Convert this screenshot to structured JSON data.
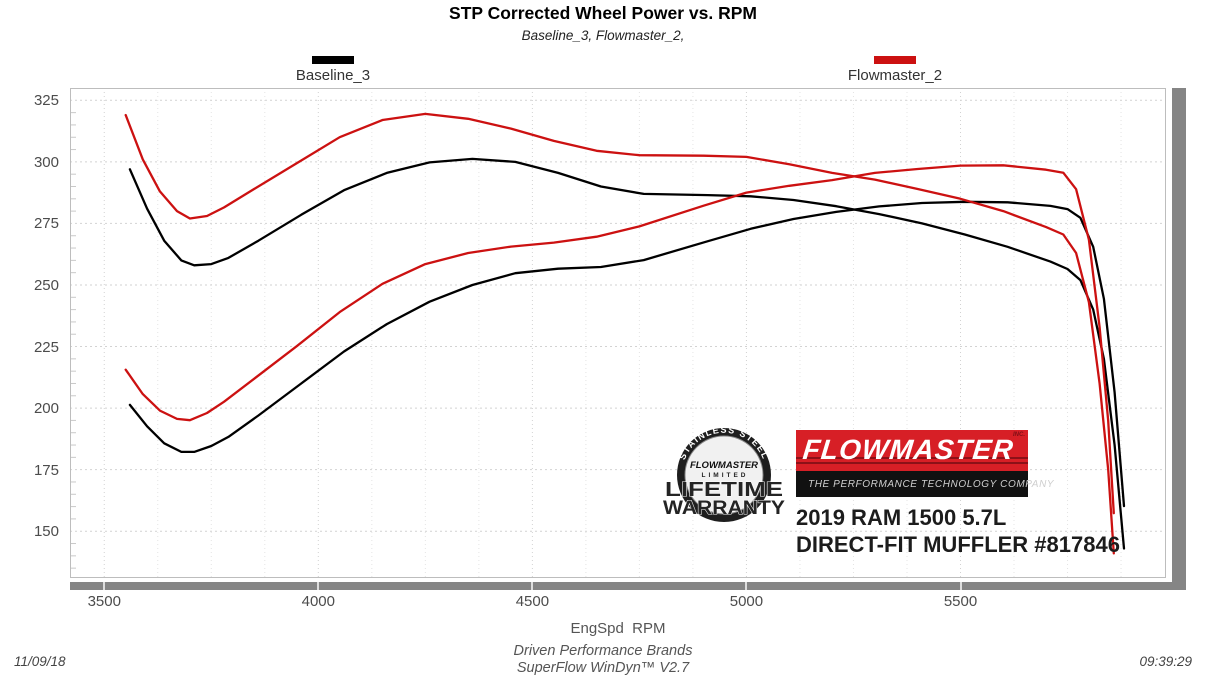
{
  "header": {
    "title": "STP Corrected Wheel Power vs. RPM",
    "subtitle": "Baseline_3, Flowmaster_2,"
  },
  "legend": [
    {
      "label": "Baseline_3",
      "color": "#000000"
    },
    {
      "label": "Flowmaster_2",
      "color": "#cc1111"
    }
  ],
  "footer": {
    "xlabel": "EngSpd  RPM",
    "brand": "Driven Performance Brands",
    "software": "SuperFlow WinDyn™ V2.7",
    "date": "11/09/18",
    "time": "09:39:29"
  },
  "overlay": {
    "badge": {
      "arc_text": "STAINLESS STEEL",
      "brand": "FLOWMASTER",
      "limited": "LIMITED",
      "line1": "LIFETIME",
      "line2": "WARRANTY"
    },
    "logo": {
      "name": "FLOWMASTER",
      "inc": "INC.",
      "tagline": "THE PERFORMANCE TECHNOLOGY COMPANY",
      "red": "#d71f26"
    },
    "vehicle_line1": "2019 RAM 1500 5.7L",
    "vehicle_line2": "DIRECT-FIT MUFFLER #817846"
  },
  "chart_data": {
    "type": "line",
    "title": "STP Corrected Wheel Power vs. RPM",
    "xlabel": "EngSpd RPM",
    "ylabel": "",
    "xlim": [
      3420,
      5980
    ],
    "ylim": [
      131,
      330
    ],
    "xticks": [
      3500,
      4000,
      4500,
      5000,
      5500
    ],
    "yticks": [
      150,
      175,
      200,
      225,
      250,
      275,
      300,
      325
    ],
    "grid": "dotted",
    "legend_position": "top",
    "series": [
      {
        "name": "Baseline_3_upper",
        "legend": "Baseline_3",
        "color": "#000000",
        "points": [
          [
            3560,
            297
          ],
          [
            3600,
            281
          ],
          [
            3640,
            268
          ],
          [
            3680,
            260
          ],
          [
            3710,
            258
          ],
          [
            3750,
            258.5
          ],
          [
            3790,
            261
          ],
          [
            3860,
            268
          ],
          [
            3960,
            278.5
          ],
          [
            4060,
            288.5
          ],
          [
            4160,
            295.5
          ],
          [
            4260,
            299.8
          ],
          [
            4360,
            301.2
          ],
          [
            4460,
            300
          ],
          [
            4560,
            295.5
          ],
          [
            4660,
            290
          ],
          [
            4760,
            287
          ],
          [
            4910,
            286.5
          ],
          [
            5010,
            286
          ],
          [
            5110,
            284.5
          ],
          [
            5210,
            282
          ],
          [
            5310,
            278.8
          ],
          [
            5410,
            275
          ],
          [
            5510,
            270.5
          ],
          [
            5610,
            265.5
          ],
          [
            5710,
            259.5
          ],
          [
            5750,
            256.5
          ],
          [
            5780,
            252
          ],
          [
            5810,
            240
          ],
          [
            5835,
            220
          ],
          [
            5860,
            185
          ],
          [
            5882,
            143
          ]
        ]
      },
      {
        "name": "Baseline_3_lower",
        "legend": "Baseline_3",
        "color": "#000000",
        "points": [
          [
            3560,
            201.3
          ],
          [
            3600,
            192.6
          ],
          [
            3640,
            185.7
          ],
          [
            3680,
            182.2
          ],
          [
            3710,
            182.2
          ],
          [
            3750,
            184.6
          ],
          [
            3790,
            188.3
          ],
          [
            3860,
            197.0
          ],
          [
            3960,
            210.0
          ],
          [
            4060,
            223.0
          ],
          [
            4160,
            234.1
          ],
          [
            4260,
            243.2
          ],
          [
            4360,
            250.0
          ],
          [
            4460,
            254.8
          ],
          [
            4560,
            256.6
          ],
          [
            4660,
            257.3
          ],
          [
            4760,
            260.1
          ],
          [
            4910,
            267.8
          ],
          [
            5010,
            272.8
          ],
          [
            5110,
            276.8
          ],
          [
            5210,
            279.7
          ],
          [
            5310,
            281.9
          ],
          [
            5410,
            283.3
          ],
          [
            5510,
            283.8
          ],
          [
            5610,
            283.6
          ],
          [
            5710,
            282.1
          ],
          [
            5750,
            280.8
          ],
          [
            5780,
            277.3
          ],
          [
            5810,
            265.5
          ],
          [
            5835,
            244.4
          ],
          [
            5860,
            206.4
          ],
          [
            5882,
            160.2
          ]
        ]
      },
      {
        "name": "Flowmaster_2_upper",
        "legend": "Flowmaster_2",
        "color": "#cc1111",
        "points": [
          [
            3550,
            319
          ],
          [
            3590,
            301
          ],
          [
            3630,
            288
          ],
          [
            3670,
            280
          ],
          [
            3700,
            277
          ],
          [
            3740,
            278
          ],
          [
            3780,
            281.5
          ],
          [
            3850,
            289
          ],
          [
            3950,
            299.5
          ],
          [
            4050,
            310
          ],
          [
            4150,
            317
          ],
          [
            4250,
            319.5
          ],
          [
            4350,
            317.5
          ],
          [
            4450,
            313.5
          ],
          [
            4550,
            308.5
          ],
          [
            4650,
            304.5
          ],
          [
            4750,
            302.7
          ],
          [
            4900,
            302.5
          ],
          [
            5000,
            302
          ],
          [
            5100,
            299
          ],
          [
            5200,
            295.5
          ],
          [
            5300,
            292.8
          ],
          [
            5400,
            289
          ],
          [
            5500,
            285
          ],
          [
            5600,
            280
          ],
          [
            5700,
            273.5
          ],
          [
            5740,
            270.5
          ],
          [
            5770,
            263
          ],
          [
            5800,
            243
          ],
          [
            5825,
            210
          ],
          [
            5845,
            175
          ],
          [
            5858,
            141
          ]
        ]
      },
      {
        "name": "Flowmaster_2_lower",
        "legend": "Flowmaster_2",
        "color": "#cc1111",
        "points": [
          [
            3550,
            215.6
          ],
          [
            3590,
            205.7
          ],
          [
            3630,
            199.0
          ],
          [
            3670,
            195.6
          ],
          [
            3700,
            195.1
          ],
          [
            3740,
            198.0
          ],
          [
            3780,
            202.6
          ],
          [
            3850,
            211.9
          ],
          [
            3950,
            225.2
          ],
          [
            4050,
            239.0
          ],
          [
            4150,
            250.5
          ],
          [
            4250,
            258.5
          ],
          [
            4350,
            263.0
          ],
          [
            4450,
            265.6
          ],
          [
            4550,
            267.2
          ],
          [
            4650,
            269.6
          ],
          [
            4750,
            273.8
          ],
          [
            4900,
            282.2
          ],
          [
            5000,
            287.5
          ],
          [
            5100,
            290.3
          ],
          [
            5200,
            292.6
          ],
          [
            5300,
            295.5
          ],
          [
            5400,
            297.1
          ],
          [
            5500,
            298.5
          ],
          [
            5600,
            298.6
          ],
          [
            5700,
            296.8
          ],
          [
            5740,
            295.6
          ],
          [
            5770,
            288.9
          ],
          [
            5800,
            268.4
          ],
          [
            5825,
            232.9
          ],
          [
            5845,
            194.8
          ],
          [
            5858,
            157.3
          ]
        ]
      }
    ]
  }
}
